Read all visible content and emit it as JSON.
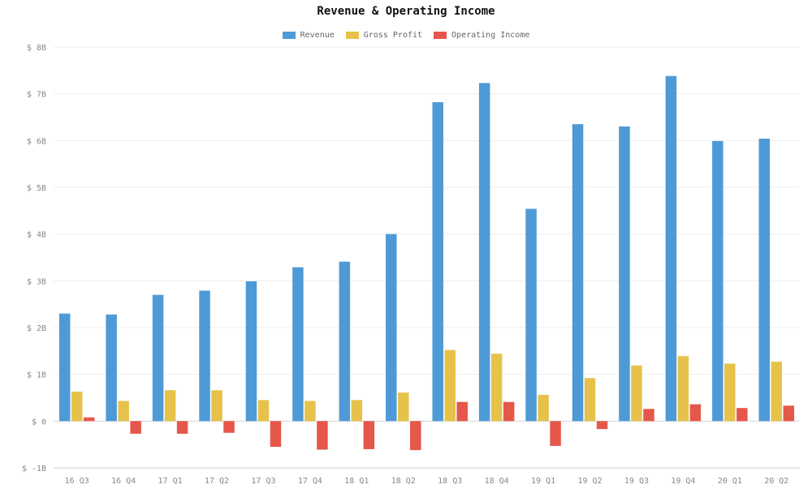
{
  "chart_data": {
    "type": "bar",
    "title": "Revenue & Operating Income",
    "categories": [
      "16 Q3",
      "16 Q4",
      "17 Q1",
      "17 Q2",
      "17 Q3",
      "17 Q4",
      "18 Q1",
      "18 Q2",
      "18 Q3",
      "18 Q4",
      "19 Q1",
      "19 Q2",
      "19 Q3",
      "19 Q4",
      "20 Q1",
      "20 Q2"
    ],
    "series": [
      {
        "name": "Revenue",
        "color": "#4e9ad6",
        "values": [
          2.3,
          2.28,
          2.7,
          2.79,
          2.99,
          3.29,
          3.41,
          4.0,
          6.82,
          7.23,
          4.54,
          6.35,
          6.3,
          7.38,
          5.99,
          6.04
        ]
      },
      {
        "name": "Gross Profit",
        "color": "#e6c24a",
        "values": [
          0.63,
          0.43,
          0.66,
          0.66,
          0.45,
          0.43,
          0.45,
          0.61,
          1.52,
          1.44,
          0.56,
          0.92,
          1.19,
          1.39,
          1.23,
          1.27
        ]
      },
      {
        "name": "Operating Income",
        "color": "#e5574a",
        "values": [
          0.08,
          -0.27,
          -0.27,
          -0.25,
          -0.55,
          -0.61,
          -0.6,
          -0.62,
          0.41,
          0.41,
          -0.53,
          -0.17,
          0.26,
          0.36,
          0.28,
          0.33
        ]
      }
    ],
    "ylim": [
      -1,
      8
    ],
    "yticks": [
      -1,
      0,
      1,
      2,
      3,
      4,
      5,
      6,
      7,
      8
    ],
    "ytick_labels": [
      "$ -1B",
      "$ 0",
      "$ 1B",
      "$ 2B",
      "$ 3B",
      "$ 4B",
      "$ 5B",
      "$ 6B",
      "$ 7B",
      "$ 8B"
    ],
    "xlabel": "",
    "ylabel": "",
    "grid": true,
    "legend_position": "top-center"
  }
}
